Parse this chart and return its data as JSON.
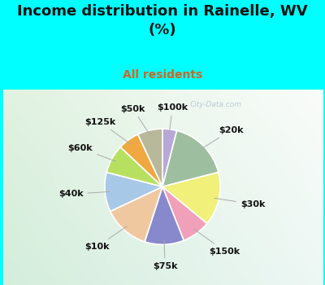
{
  "title": "Income distribution in Rainelle, WV\n(%)",
  "subtitle": "All residents",
  "title_color": "#111111",
  "subtitle_color": "#cc6622",
  "background_top": "#00ffff",
  "labels": [
    "$100k",
    "$20k",
    "$30k",
    "$150k",
    "$75k",
    "$10k",
    "$40k",
    "$60k",
    "$125k",
    "$50k"
  ],
  "sizes": [
    4,
    17,
    15,
    8,
    11,
    13,
    11,
    8,
    6,
    7
  ],
  "colors": [
    "#b8a8d8",
    "#9dbfa0",
    "#f0f07a",
    "#f0a0b8",
    "#8888cc",
    "#f0c8a0",
    "#a8c8e8",
    "#b8e060",
    "#f0a840",
    "#b8b89a"
  ],
  "label_fontsize": 8,
  "title_fontsize": 13,
  "subtitle_fontsize": 10,
  "watermark": "City-Data.com"
}
